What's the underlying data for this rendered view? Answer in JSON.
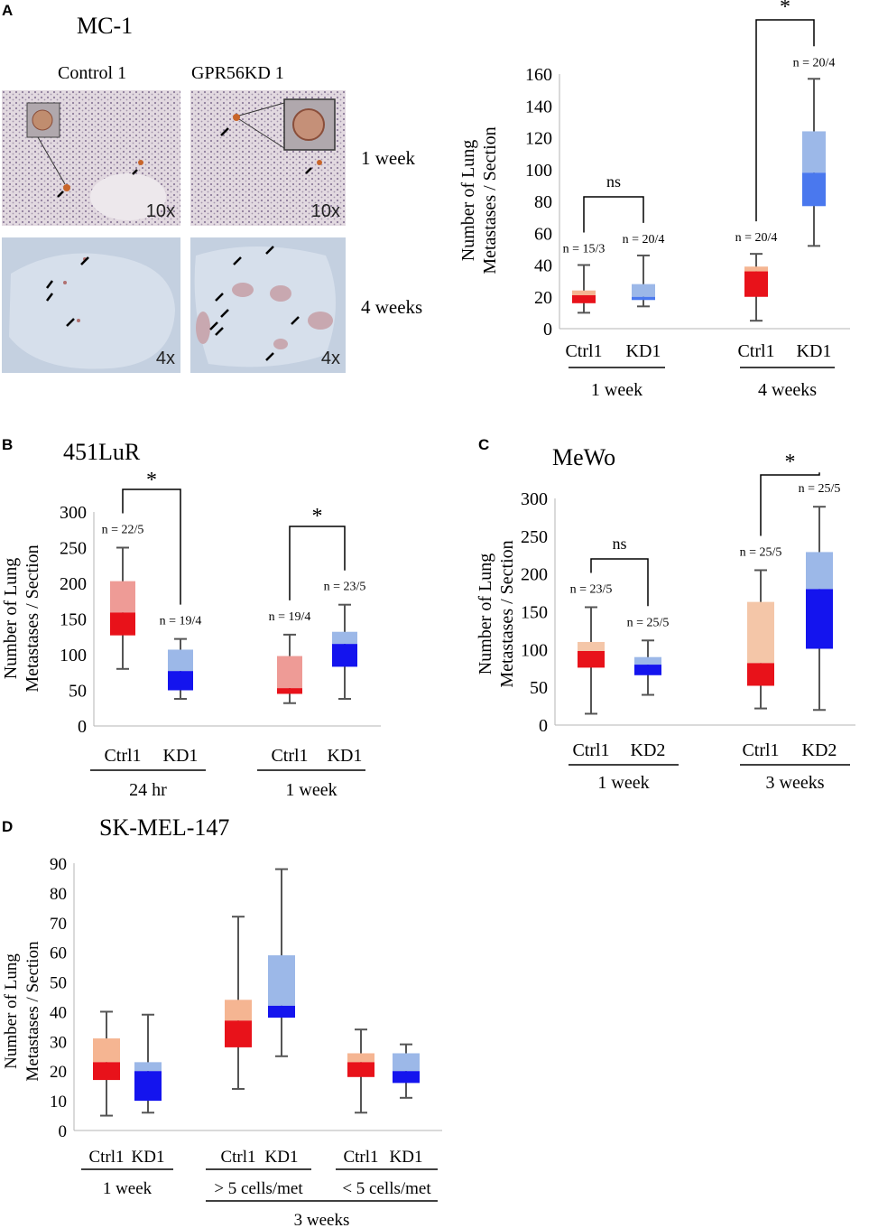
{
  "panelA": {
    "letter": "A",
    "cell_line": "MC-1",
    "images": {
      "control_label": "Control 1",
      "kd_label": "GPR56KD 1",
      "row1_time": "1 week",
      "row2_time": "4 weeks",
      "mag_row1": "10x",
      "mag_row2": "4x"
    }
  },
  "panelB": {
    "letter": "B",
    "cell_line": "451LuR"
  },
  "panelC": {
    "letter": "C",
    "cell_line": "MeWo"
  },
  "panelD": {
    "letter": "D",
    "cell_line": "SK-MEL-147"
  },
  "colors": {
    "ctrl_dark": "#e8121a",
    "ctrl_light_a": "#f5b592",
    "ctrl_light_b": "#ee9b96",
    "ctrl_light_c": "#f4c6a8",
    "kd_dark_a": "#4a78ee",
    "kd_dark": "#1414ee",
    "kd_light": "#9cb8e8",
    "whisker": "#555555"
  },
  "chart_data": [
    {
      "id": "A",
      "type": "box",
      "ylabel": "Number of Lung Metastases / Section",
      "ylim": [
        0,
        160
      ],
      "yticks": [
        0,
        20,
        40,
        60,
        80,
        100,
        120,
        140,
        160
      ],
      "boxes": [
        {
          "label": "Ctrl1",
          "n": "n = 15/3",
          "min": 10,
          "q1": 16,
          "median": 21,
          "q3": 24,
          "max": 40
        },
        {
          "label": "KD1",
          "n": "n = 20/4",
          "min": 14,
          "q1": 18,
          "median": 20,
          "q3": 28,
          "max": 46
        },
        {
          "label": "Ctrl1",
          "n": "n = 20/4",
          "min": 5,
          "q1": 20,
          "median": 36,
          "q3": 39,
          "max": 47
        },
        {
          "label": "KD1",
          "n": "n = 20/4",
          "min": 52,
          "q1": 77,
          "median": 98,
          "q3": 124,
          "max": 157
        }
      ],
      "groups": [
        {
          "label": "1 week"
        },
        {
          "label": "4 weeks"
        }
      ],
      "significance": [
        {
          "text": "ns"
        },
        {
          "text": "*"
        }
      ]
    },
    {
      "id": "B",
      "type": "box",
      "ylabel": "Number of Lung Metastases / Section",
      "ylim": [
        0,
        300
      ],
      "yticks": [
        0,
        50,
        100,
        150,
        200,
        250,
        300
      ],
      "boxes": [
        {
          "label": "Ctrl1",
          "n": "n = 22/5",
          "min": 80,
          "q1": 127,
          "median": 159,
          "q3": 203,
          "max": 250
        },
        {
          "label": "KD1",
          "n": "n = 19/4",
          "min": 38,
          "q1": 50,
          "median": 77,
          "q3": 107,
          "max": 122
        },
        {
          "label": "Ctrl1",
          "n": "n = 19/4",
          "min": 32,
          "q1": 45,
          "median": 53,
          "q3": 98,
          "max": 128
        },
        {
          "label": "KD1",
          "n": "n = 23/5",
          "min": 38,
          "q1": 83,
          "median": 115,
          "q3": 132,
          "max": 170
        }
      ],
      "groups": [
        {
          "label": "24 hr"
        },
        {
          "label": "1 week"
        }
      ],
      "significance": [
        {
          "text": "*"
        },
        {
          "text": "*"
        }
      ]
    },
    {
      "id": "C",
      "type": "box",
      "ylabel": "Number of Lung Metastases / Section",
      "ylim": [
        0,
        300
      ],
      "yticks": [
        0,
        50,
        100,
        150,
        200,
        250,
        300
      ],
      "boxes": [
        {
          "label": "Ctrl1",
          "n": "n = 23/5",
          "min": 15,
          "q1": 76,
          "median": 98,
          "q3": 110,
          "max": 156
        },
        {
          "label": "KD2",
          "n": "n = 25/5",
          "min": 40,
          "q1": 66,
          "median": 80,
          "q3": 90,
          "max": 112
        },
        {
          "label": "Ctrl1",
          "n": "n = 25/5",
          "min": 22,
          "q1": 52,
          "median": 82,
          "q3": 163,
          "max": 205
        },
        {
          "label": "KD2",
          "n": "n = 25/5",
          "min": 20,
          "q1": 101,
          "median": 180,
          "q3": 229,
          "max": 289
        }
      ],
      "groups": [
        {
          "label": "1 week"
        },
        {
          "label": "3 weeks"
        }
      ],
      "significance": [
        {
          "text": "ns"
        },
        {
          "text": "*"
        }
      ]
    },
    {
      "id": "D",
      "type": "box",
      "ylabel": "Number of Lung Metastases / Section",
      "ylim": [
        0,
        90
      ],
      "yticks": [
        0,
        10,
        20,
        30,
        40,
        50,
        60,
        70,
        80,
        90
      ],
      "boxes": [
        {
          "label": "Ctrl1",
          "min": 5,
          "q1": 17,
          "median": 23,
          "q3": 31,
          "max": 40
        },
        {
          "label": "KD1",
          "min": 6,
          "q1": 10,
          "median": 20,
          "q3": 23,
          "max": 39
        },
        {
          "label": "Ctrl1",
          "min": 14,
          "q1": 28,
          "median": 37,
          "q3": 44,
          "max": 72
        },
        {
          "label": "KD1",
          "min": 25,
          "q1": 38,
          "median": 42,
          "q3": 59,
          "max": 88
        },
        {
          "label": "Ctrl1",
          "min": 6,
          "q1": 18,
          "median": 23,
          "q3": 26,
          "max": 34
        },
        {
          "label": "KD1",
          "min": 11,
          "q1": 16,
          "median": 20,
          "q3": 26,
          "max": 29
        }
      ],
      "groups": [
        {
          "label": "1 week"
        },
        {
          "label": "> 5 cells/met"
        },
        {
          "label": "< 5 cells/met"
        }
      ],
      "supergroup": "3 weeks"
    }
  ]
}
